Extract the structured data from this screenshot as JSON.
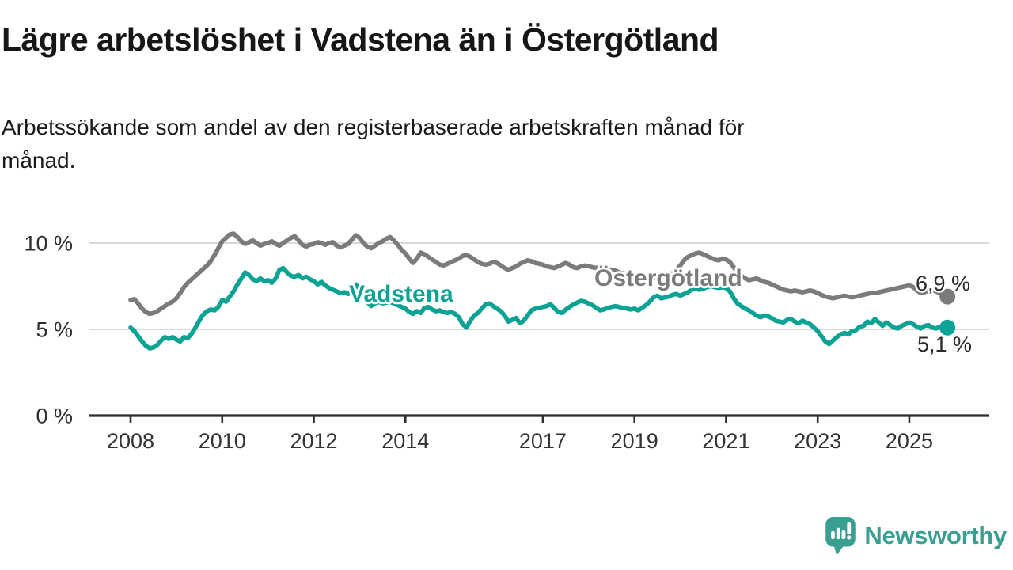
{
  "header": {
    "title": "Lägre arbetslöshet i Vadstena än i Östergötland",
    "subtitle": "Arbetssökande som andel av den registerbaserade arbetskraften månad för månad."
  },
  "branding": {
    "name": "Newsworthy",
    "logo_icon": "speech-bubble-bar-chart-exclamation-icon",
    "brand_color": "#3a9e90"
  },
  "colors": {
    "vadstena_line": "#0ca394",
    "ostergotland_line": "#7b7b7b",
    "axis": "#2e2e2e",
    "gridline": "#d9d9d9",
    "text": "#1a1a1a"
  },
  "chart_data": {
    "type": "line",
    "title": "Lägre arbetslöshet i Vadstena än i Östergötland",
    "subtitle": "Arbetssökande som andel av den registerbaserade arbetskraften månad för månad.",
    "unit": "%",
    "frequency": "monthly",
    "x_start": "2008-01",
    "x_end": "2025-11",
    "grid": "horizontal",
    "legend_position": "inline-labels",
    "x_tick_years": [
      2008,
      2010,
      2012,
      2014,
      2017,
      2019,
      2021,
      2023,
      2025
    ],
    "y_ticks": [
      {
        "value": 0,
        "label": "0 %"
      },
      {
        "value": 5,
        "label": "5 %"
      },
      {
        "value": 10,
        "label": "10 %"
      }
    ],
    "ylim": [
      0,
      11.6
    ],
    "series": [
      {
        "name": "Östergötland",
        "color": "#7b7b7b",
        "end_label": "6,9 %",
        "end_value": 6.9,
        "values": [
          6.7,
          6.75,
          6.5,
          6.2,
          6.0,
          5.9,
          5.95,
          6.05,
          6.2,
          6.35,
          6.5,
          6.6,
          6.8,
          7.1,
          7.45,
          7.7,
          7.9,
          8.1,
          8.3,
          8.5,
          8.7,
          8.95,
          9.3,
          9.7,
          10.1,
          10.3,
          10.5,
          10.55,
          10.35,
          10.1,
          9.95,
          10.05,
          10.15,
          10.0,
          9.85,
          9.95,
          10.0,
          10.1,
          9.95,
          9.85,
          10.0,
          10.15,
          10.3,
          10.4,
          10.15,
          9.9,
          9.8,
          9.9,
          9.95,
          10.05,
          10.0,
          9.9,
          10.0,
          10.05,
          9.85,
          9.75,
          9.85,
          9.95,
          10.2,
          10.45,
          10.3,
          10.0,
          9.8,
          9.7,
          9.85,
          10.0,
          10.1,
          10.25,
          10.35,
          10.15,
          9.9,
          9.6,
          9.4,
          9.1,
          8.85,
          9.1,
          9.45,
          9.35,
          9.2,
          9.05,
          8.9,
          8.75,
          8.7,
          8.8,
          8.9,
          9.0,
          9.1,
          9.25,
          9.3,
          9.2,
          9.05,
          8.9,
          8.8,
          8.75,
          8.8,
          8.9,
          8.85,
          8.7,
          8.55,
          8.45,
          8.55,
          8.65,
          8.8,
          8.9,
          9.0,
          8.95,
          8.85,
          8.8,
          8.75,
          8.65,
          8.6,
          8.55,
          8.65,
          8.75,
          8.85,
          8.75,
          8.6,
          8.55,
          8.65,
          8.7,
          8.65,
          8.6,
          8.55,
          8.65,
          8.6,
          8.5,
          8.45,
          8.4,
          8.3,
          8.25,
          8.2,
          8.15,
          8.1,
          8.15,
          8.2,
          8.1,
          8.05,
          8.0,
          7.95,
          8.0,
          8.05,
          8.1,
          8.25,
          8.45,
          8.7,
          9.0,
          9.2,
          9.3,
          9.4,
          9.45,
          9.35,
          9.25,
          9.15,
          9.05,
          9.0,
          9.1,
          9.05,
          8.9,
          8.6,
          8.3,
          8.1,
          7.95,
          7.85,
          7.9,
          7.95,
          7.85,
          7.75,
          7.7,
          7.6,
          7.5,
          7.4,
          7.3,
          7.25,
          7.2,
          7.25,
          7.2,
          7.15,
          7.2,
          7.25,
          7.2,
          7.1,
          7.0,
          6.9,
          6.85,
          6.8,
          6.85,
          6.9,
          6.95,
          6.9,
          6.85,
          6.9,
          6.95,
          7.0,
          7.05,
          7.1,
          7.1,
          7.15,
          7.2,
          7.25,
          7.3,
          7.35,
          7.4,
          7.45,
          7.5,
          7.55,
          7.45,
          7.25,
          7.1,
          7.15,
          7.25,
          7.3,
          7.2,
          7.1,
          6.95,
          6.9
        ]
      },
      {
        "name": "Vadstena",
        "color": "#0ca394",
        "end_label": "5,1 %",
        "end_value": 5.1,
        "values": [
          5.1,
          4.9,
          4.6,
          4.3,
          4.05,
          3.9,
          3.95,
          4.1,
          4.35,
          4.55,
          4.45,
          4.55,
          4.4,
          4.3,
          4.55,
          4.5,
          4.75,
          5.1,
          5.5,
          5.85,
          6.05,
          6.15,
          6.1,
          6.3,
          6.7,
          6.6,
          6.9,
          7.2,
          7.6,
          7.95,
          8.3,
          8.15,
          7.9,
          7.8,
          7.95,
          7.8,
          7.85,
          7.7,
          7.95,
          8.45,
          8.55,
          8.3,
          8.1,
          8.05,
          8.15,
          7.95,
          8.05,
          7.9,
          7.8,
          7.6,
          7.75,
          7.55,
          7.4,
          7.3,
          7.2,
          7.1,
          7.15,
          7.05,
          7.2,
          7.6,
          7.35,
          7.0,
          6.6,
          6.35,
          6.5,
          6.6,
          6.5,
          6.55,
          6.6,
          6.5,
          6.4,
          6.3,
          6.2,
          6.0,
          5.9,
          6.05,
          5.95,
          6.25,
          6.3,
          6.15,
          6.05,
          6.1,
          6.0,
          5.95,
          6.0,
          5.9,
          5.7,
          5.3,
          5.1,
          5.5,
          5.8,
          5.95,
          6.2,
          6.45,
          6.5,
          6.35,
          6.2,
          6.05,
          5.8,
          5.45,
          5.55,
          5.65,
          5.35,
          5.5,
          5.8,
          6.1,
          6.2,
          6.25,
          6.3,
          6.35,
          6.45,
          6.25,
          6.0,
          5.95,
          6.15,
          6.3,
          6.45,
          6.55,
          6.65,
          6.6,
          6.5,
          6.4,
          6.25,
          6.1,
          6.15,
          6.25,
          6.3,
          6.35,
          6.3,
          6.25,
          6.2,
          6.15,
          6.2,
          6.1,
          6.25,
          6.4,
          6.6,
          6.85,
          6.95,
          6.8,
          6.85,
          6.9,
          7.0,
          7.05,
          6.95,
          7.05,
          7.15,
          7.3,
          7.35,
          7.3,
          7.35,
          7.45,
          7.5,
          7.45,
          7.4,
          7.45,
          7.4,
          7.2,
          6.8,
          6.5,
          6.35,
          6.2,
          6.1,
          5.95,
          5.8,
          5.7,
          5.8,
          5.75,
          5.65,
          5.5,
          5.45,
          5.4,
          5.55,
          5.6,
          5.45,
          5.35,
          5.5,
          5.4,
          5.3,
          5.1,
          4.9,
          4.6,
          4.3,
          4.15,
          4.35,
          4.55,
          4.7,
          4.8,
          4.7,
          4.9,
          4.95,
          5.15,
          5.2,
          5.45,
          5.35,
          5.6,
          5.4,
          5.2,
          5.4,
          5.25,
          5.1,
          5.05,
          5.2,
          5.3,
          5.4,
          5.3,
          5.15,
          5.05,
          5.2,
          5.25,
          5.1,
          5.05,
          5.15,
          5.2,
          5.1
        ]
      }
    ]
  }
}
